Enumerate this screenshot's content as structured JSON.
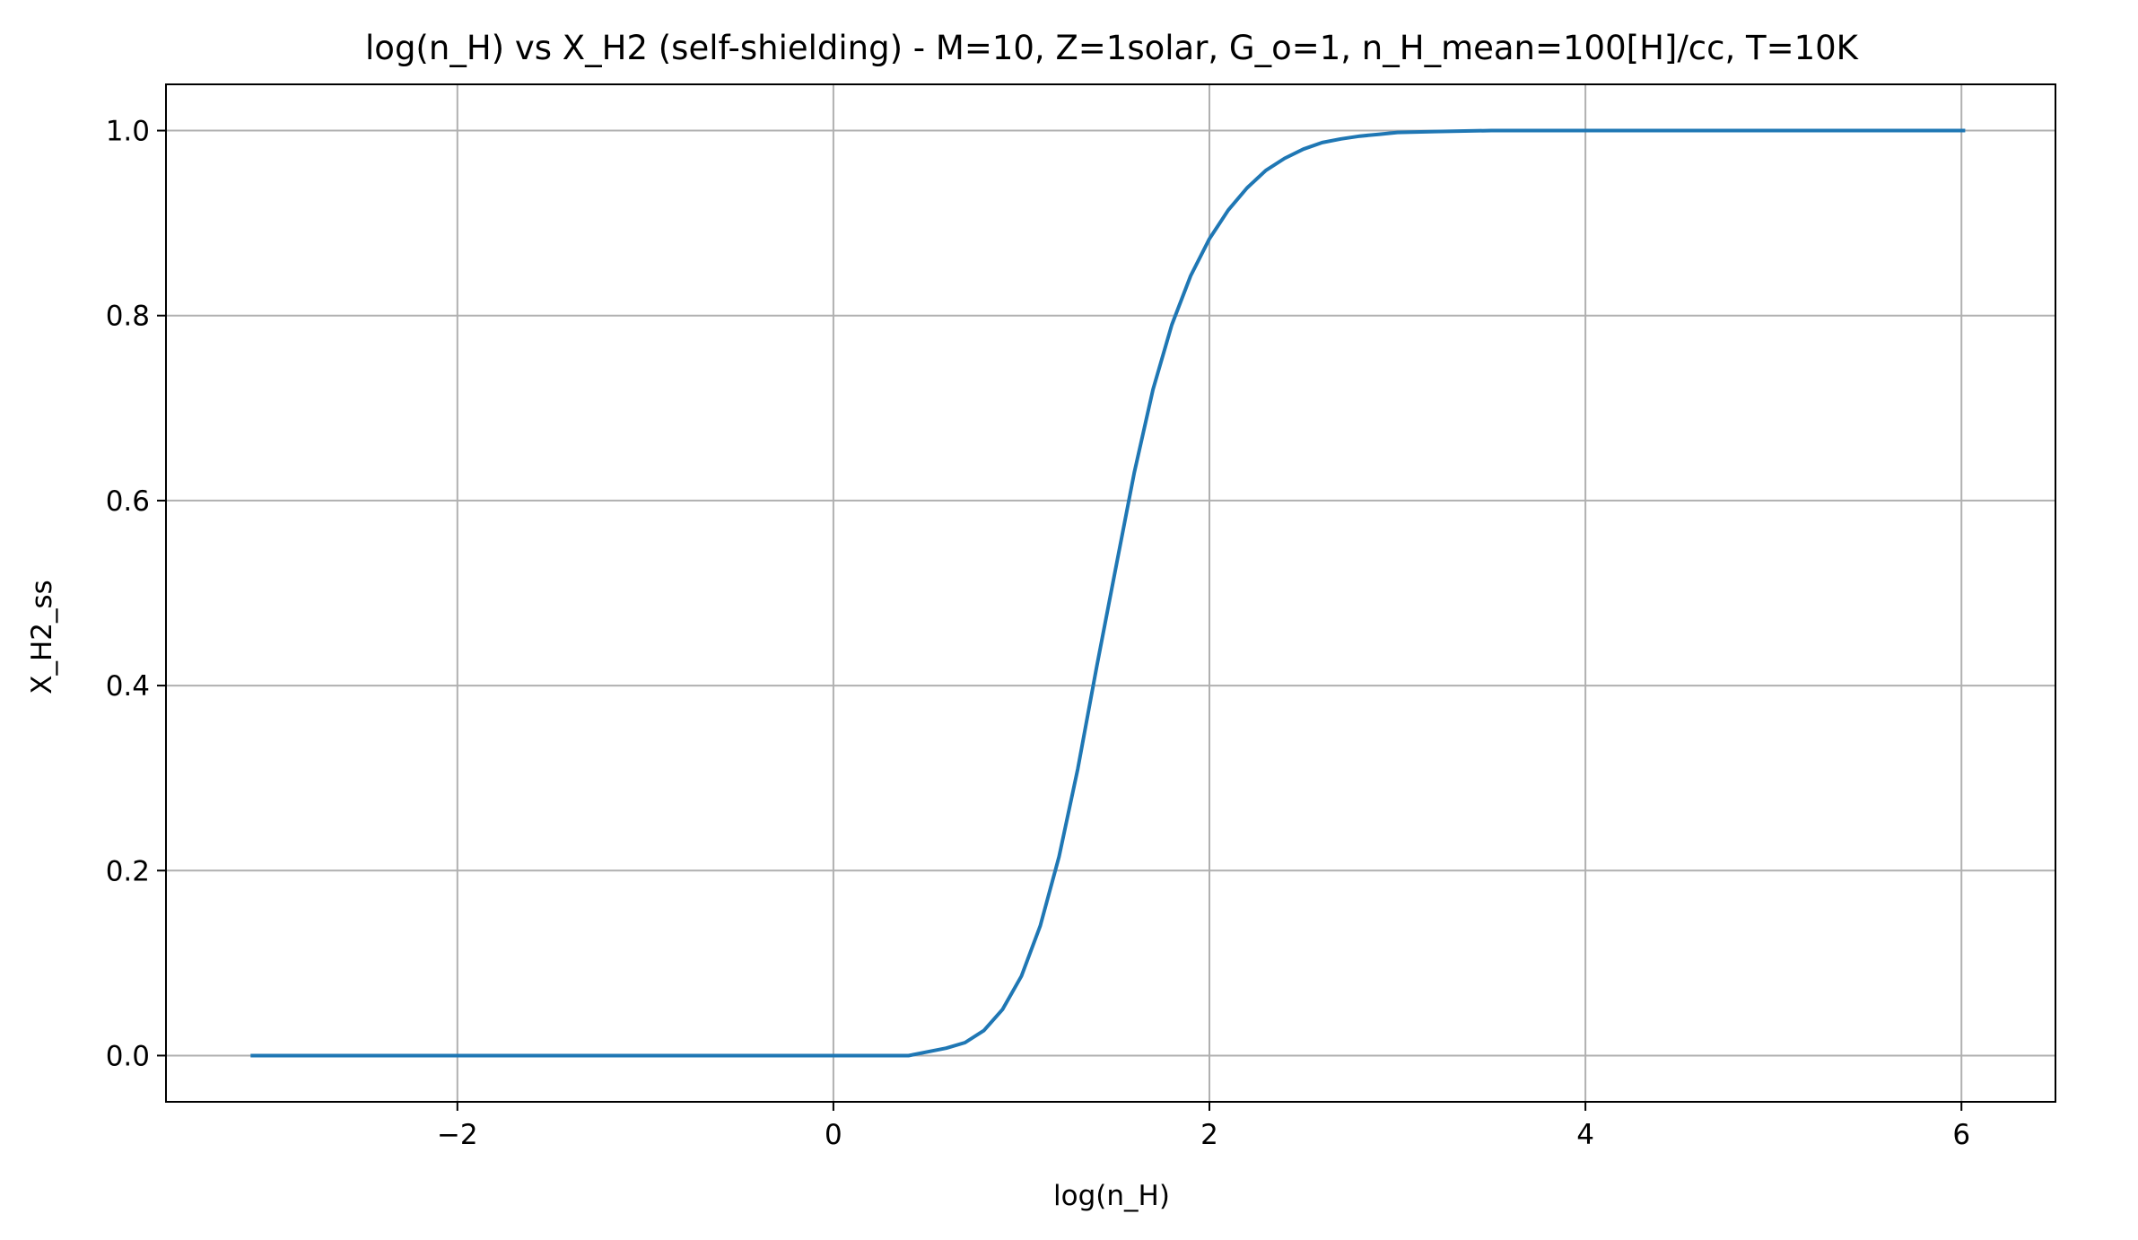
{
  "chart_data": {
    "type": "line",
    "title": "log(n_H) vs X_H2 (self-shielding) - M=10, Z=1solar, G_o=1, n_H_mean=100[H]/cc, T=10K",
    "xlabel": "log(n_H)",
    "ylabel": "X_H2_ss",
    "xlim": [
      -3.55,
      6.5
    ],
    "ylim": [
      -0.05,
      1.05
    ],
    "x_ticks": [
      -2,
      0,
      2,
      4,
      6
    ],
    "x_tick_labels": [
      "−2",
      "0",
      "2",
      "4",
      "6"
    ],
    "y_ticks": [
      0.0,
      0.2,
      0.4,
      0.6,
      0.8,
      1.0
    ],
    "y_tick_labels": [
      "0.0",
      "0.2",
      "0.4",
      "0.6",
      "0.8",
      "1.0"
    ],
    "grid": true,
    "legend": "none",
    "line_color": "#1f77b4",
    "series": [
      {
        "x": [
          -3.1,
          -2.5,
          -2.0,
          -1.5,
          -1.0,
          -0.5,
          0.0,
          0.3,
          0.4,
          0.5,
          0.6,
          0.7,
          0.8,
          0.9,
          1.0,
          1.1,
          1.2,
          1.3,
          1.4,
          1.5,
          1.6,
          1.7,
          1.8,
          1.9,
          2.0,
          2.1,
          2.2,
          2.3,
          2.4,
          2.5,
          2.6,
          2.7,
          2.8,
          2.9,
          3.0,
          3.2,
          3.5,
          4.0,
          5.0,
          6.02
        ],
        "y": [
          0.0,
          0.0,
          0.0,
          0.0,
          0.0,
          0.0,
          0.0,
          0.0,
          0.0,
          0.004,
          0.008,
          0.014,
          0.027,
          0.05,
          0.086,
          0.14,
          0.215,
          0.31,
          0.42,
          0.525,
          0.63,
          0.72,
          0.79,
          0.843,
          0.883,
          0.914,
          0.938,
          0.957,
          0.97,
          0.98,
          0.987,
          0.991,
          0.994,
          0.996,
          0.998,
          0.999,
          1.0,
          1.0,
          1.0,
          1.0
        ]
      }
    ]
  }
}
